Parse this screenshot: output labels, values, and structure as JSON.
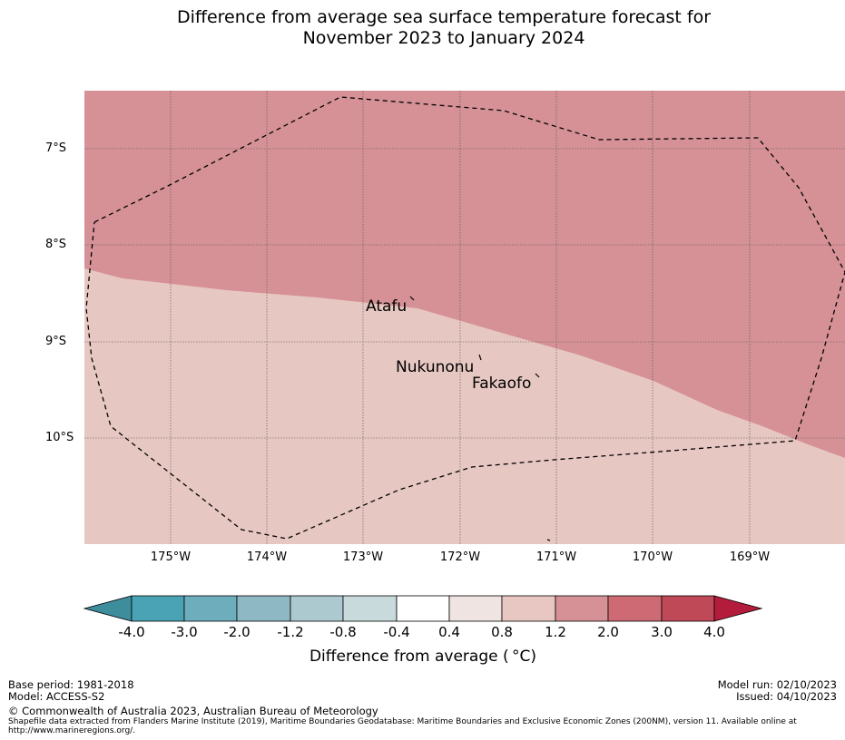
{
  "title": {
    "line1": "Difference from average sea surface temperature forecast for",
    "line2": "November 2023 to January 2024"
  },
  "map": {
    "latitude_labels": [
      "7°S",
      "8°S",
      "9°S",
      "10°S"
    ],
    "longitude_labels": [
      "175°W",
      "174°W",
      "173°W",
      "172°W",
      "171°W",
      "170°W",
      "169°W"
    ],
    "places": [
      "Atafu",
      "Nukunonu",
      "Fakaofo"
    ],
    "regions": [
      {
        "name": "north",
        "category": "1.2 to 2.0",
        "color": "#d59196"
      },
      {
        "name": "south",
        "category": "0.8 to 1.2",
        "color": "#e7c7c2"
      }
    ],
    "eez_boundary_style": "dashed"
  },
  "colorbar": {
    "ticks": [
      "-4.0",
      "-3.0",
      "-2.0",
      "-1.2",
      "-0.8",
      "-0.4",
      "0.4",
      "0.8",
      "1.2",
      "2.0",
      "3.0",
      "4.0"
    ],
    "colors": [
      "#3e8d9d",
      "#4aa3b4",
      "#6eaebc",
      "#8eb8c3",
      "#abc9cf",
      "#c8dadc",
      "#ffffff",
      "#f0e4e3",
      "#e8c6c1",
      "#d59196",
      "#cd6a74",
      "#c04957",
      "#b31c3b"
    ],
    "label": "Difference from average ( °C)"
  },
  "footer": {
    "base_period": "Base period: 1981-2018",
    "model": "Model: ACCESS-S2",
    "model_run": "Model run: 02/10/2023",
    "issued": "Issued: 04/10/2023",
    "copyright": "© Commonwealth of Australia 2023, Australian Bureau of Meteorology",
    "shapefile_line1": "Shapefile data extracted from Flanders Marine Institute (2019), Maritime Boundaries Geodatabase: Maritime Boundaries and Exclusive Economic Zones (200NM), version 11. Available online at",
    "shapefile_line2": "http://www.marineregions.org/."
  }
}
